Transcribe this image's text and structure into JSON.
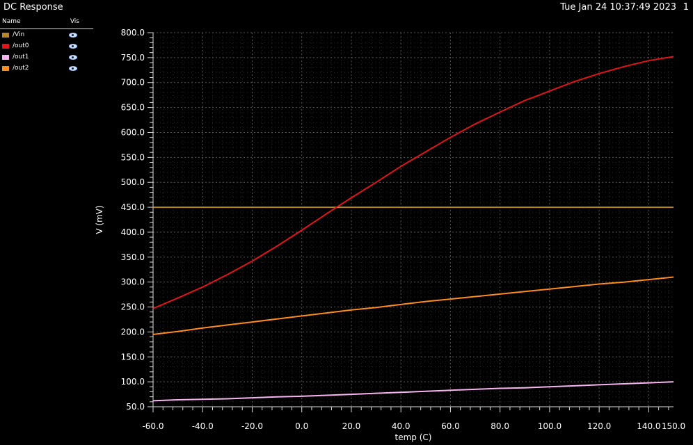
{
  "window": {
    "title": "DC Response",
    "timestamp": "Tue Jan 24 10:37:49 2023",
    "subwindow_number": "1"
  },
  "legend": {
    "name_header": "Name",
    "vis_header": "Vis",
    "icon": "eye-icon"
  },
  "chart_data": {
    "type": "line",
    "title": "DC Response",
    "xlabel": "temp (C)",
    "ylabel": "V (mV)",
    "xlim": [
      -60,
      150
    ],
    "ylim": [
      50,
      800
    ],
    "grid": true,
    "legend_placement": "left",
    "x_ticks": [
      "-60.0",
      "-40.0",
      "-20.0",
      "0.0",
      "20.0",
      "40.0",
      "60.0",
      "80.0",
      "100.0",
      "120.0",
      "140.0",
      "150.0"
    ],
    "y_ticks": [
      "50.0",
      "100.0",
      "150.0",
      "200.0",
      "250.0",
      "300.0",
      "350.0",
      "400.0",
      "450.0",
      "500.0",
      "550.0",
      "600.0",
      "650.0",
      "700.0",
      "750.0",
      "800.0"
    ],
    "x": [
      -60,
      -50,
      -40,
      -30,
      -20,
      -10,
      0,
      10,
      20,
      30,
      40,
      50,
      60,
      70,
      80,
      90,
      100,
      110,
      120,
      130,
      140,
      150
    ],
    "series": [
      {
        "name": "/Vin",
        "color": "#b8862a",
        "values": [
          450,
          450,
          450,
          450,
          450,
          450,
          450,
          450,
          450,
          450,
          450,
          450,
          450,
          450,
          450,
          450,
          450,
          450,
          450,
          450,
          450,
          450
        ]
      },
      {
        "name": "/out0",
        "color": "#e0151a",
        "values": [
          247,
          268,
          290,
          315,
          342,
          372,
          404,
          437,
          469,
          500,
          532,
          561,
          590,
          617,
          641,
          664,
          683,
          702,
          718,
          732,
          744,
          752
        ]
      },
      {
        "name": "/out1",
        "color": "#f7b4f0",
        "values": [
          62,
          64,
          65,
          66,
          68,
          70,
          71,
          73,
          75,
          77,
          79,
          81,
          83,
          85,
          87,
          88,
          90,
          92,
          94,
          96,
          98,
          100
        ]
      },
      {
        "name": "/out2",
        "color": "#ff8a1e",
        "values": [
          195,
          201,
          208,
          214,
          220,
          226,
          232,
          238,
          244,
          249,
          255,
          261,
          266,
          271,
          276,
          281,
          286,
          291,
          296,
          300,
          305,
          310
        ]
      }
    ]
  }
}
